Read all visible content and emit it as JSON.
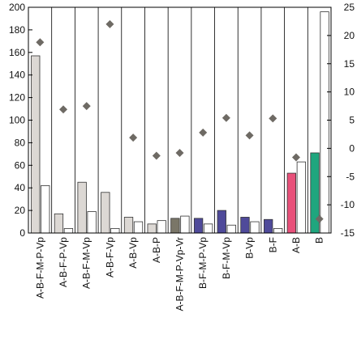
{
  "chart_data": {
    "type": "bar",
    "title": "",
    "xlabel": "",
    "ylabel": "",
    "categories": [
      "A-B-F-M-P-Vp",
      "A-B-F-P-Vp",
      "A-B-F-M-Vp",
      "A-B-F-Vp",
      "A-B-Vp",
      "A-B-P",
      "A-B-F-M-P-Vp-Vr",
      "B-F-M-P-Vp",
      "B-F-M-Vp",
      "B-Vp",
      "B-F",
      "A-B",
      "B"
    ],
    "ylim": [
      0,
      200
    ],
    "yticks": [
      0,
      20,
      40,
      60,
      80,
      100,
      120,
      140,
      160,
      180,
      200
    ],
    "y2lim": [
      -15,
      25
    ],
    "y2ticks": [
      -15,
      -10,
      -5,
      0,
      5,
      10,
      15,
      20,
      25
    ],
    "grid": false,
    "legend": "none",
    "series": [
      {
        "axis": "left",
        "kind": "bar",
        "values": [
          157,
          17,
          45,
          36,
          14,
          8,
          13,
          13,
          20,
          14,
          12,
          53,
          71
        ],
        "colors": [
          "#dcd8d4",
          "#dcd8d4",
          "#dcd8d4",
          "#dcd8d4",
          "#dcd8d4",
          "#dcd8d4",
          "#7a7668",
          "#4f4a9a",
          "#4f4a9a",
          "#4f4a9a",
          "#4f4a9a",
          "#e8507a",
          "#1fa67e"
        ]
      },
      {
        "axis": "left",
        "kind": "bar",
        "values": [
          42,
          4,
          19,
          4,
          10,
          11,
          15,
          8,
          7,
          10,
          4,
          63,
          196
        ],
        "color": "#ffffff"
      },
      {
        "axis": "right",
        "kind": "marker",
        "values": [
          18.8,
          6.9,
          7.5,
          22,
          1.9,
          -1.3,
          -0.8,
          2.8,
          5.4,
          2.3,
          5.3,
          -1.6,
          -12.5
        ],
        "color": "#6e6a64"
      }
    ]
  }
}
